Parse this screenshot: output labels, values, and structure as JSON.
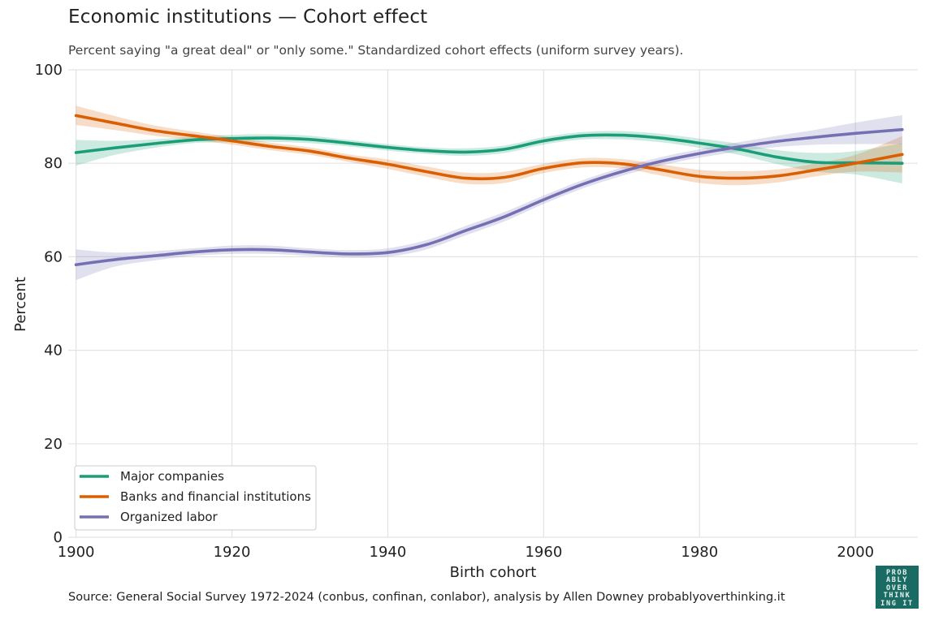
{
  "header": {
    "title": "Economic institutions — Cohort effect",
    "subtitle": "Percent saying \"a great deal\" or \"only some.\" Standardized cohort effects (uniform survey years)."
  },
  "footer": {
    "source": "Source: General Social Survey 1972-2024 (conbus, confinan, conlabor), analysis by Allen Downey probablyoverthinking.it"
  },
  "logo": {
    "lines": [
      "PROB",
      "ABLY",
      "OVER",
      "THINK",
      "ING IT"
    ]
  },
  "chart_data": {
    "type": "line",
    "xlabel": "Birth cohort",
    "ylabel": "Percent",
    "xlim": [
      1899,
      2008
    ],
    "ylim": [
      0,
      100
    ],
    "x_ticks": [
      1900,
      1920,
      1940,
      1960,
      1980,
      2000
    ],
    "y_ticks": [
      0,
      20,
      40,
      60,
      80,
      100
    ],
    "grid": true,
    "legend_position": "bottom-left",
    "x": [
      1900,
      1905,
      1910,
      1915,
      1920,
      1925,
      1930,
      1935,
      1940,
      1945,
      1950,
      1955,
      1960,
      1965,
      1970,
      1975,
      1980,
      1985,
      1990,
      1995,
      2000,
      2006
    ],
    "series": [
      {
        "name": "Major companies",
        "color": "#1b9e77",
        "values": [
          82.3,
          83.3,
          84.2,
          85.0,
          85.3,
          85.4,
          85.1,
          84.3,
          83.4,
          82.7,
          82.4,
          83.0,
          84.8,
          85.9,
          86.0,
          85.4,
          84.3,
          83.0,
          81.3,
          80.2,
          80.1,
          80.0
        ],
        "ci_low": [
          79.5,
          81.8,
          83.3,
          84.3,
          84.5,
          84.6,
          84.3,
          83.6,
          82.7,
          82.0,
          81.6,
          82.2,
          84.0,
          85.1,
          85.1,
          84.5,
          83.3,
          81.8,
          79.8,
          78.2,
          77.6,
          75.7
        ],
        "ci_high": [
          85.0,
          84.8,
          85.1,
          85.7,
          86.1,
          86.2,
          85.9,
          85.0,
          84.1,
          83.4,
          83.2,
          83.8,
          85.6,
          86.7,
          86.9,
          86.3,
          85.3,
          84.2,
          82.8,
          82.2,
          82.6,
          84.3
        ]
      },
      {
        "name": "Banks and financial institutions",
        "color": "#d95f02",
        "values": [
          90.2,
          88.6,
          87.0,
          85.9,
          84.8,
          83.6,
          82.6,
          81.1,
          79.8,
          78.2,
          76.8,
          77.0,
          78.9,
          80.1,
          79.9,
          78.6,
          77.2,
          76.8,
          77.3,
          78.6,
          80.0,
          81.9
        ],
        "ci_low": [
          88.2,
          87.1,
          85.9,
          85.0,
          84.0,
          82.8,
          81.8,
          80.3,
          78.8,
          77.1,
          75.6,
          75.8,
          77.9,
          79.1,
          78.9,
          77.4,
          75.8,
          75.3,
          75.9,
          77.2,
          78.2,
          78.0
        ],
        "ci_high": [
          92.3,
          90.1,
          88.1,
          86.8,
          85.6,
          84.4,
          83.4,
          81.9,
          80.8,
          79.3,
          78.0,
          78.2,
          79.9,
          81.1,
          80.9,
          79.8,
          78.6,
          78.3,
          78.7,
          80.0,
          81.8,
          85.8
        ]
      },
      {
        "name": "Organized labor",
        "color": "#7570b3",
        "values": [
          58.3,
          59.4,
          60.2,
          61.0,
          61.5,
          61.5,
          61.0,
          60.6,
          60.9,
          62.6,
          65.6,
          68.6,
          72.2,
          75.5,
          78.2,
          80.4,
          82.1,
          83.5,
          84.7,
          85.6,
          86.4,
          87.2
        ],
        "ci_low": [
          55.0,
          57.9,
          59.2,
          60.2,
          60.6,
          60.6,
          60.2,
          59.8,
          60.0,
          61.6,
          64.6,
          67.6,
          71.3,
          74.6,
          77.3,
          79.5,
          81.2,
          82.5,
          83.5,
          84.0,
          84.1,
          84.1
        ],
        "ci_high": [
          61.6,
          60.9,
          61.2,
          61.8,
          62.4,
          62.4,
          61.8,
          61.4,
          61.8,
          63.6,
          66.6,
          69.6,
          73.1,
          76.4,
          79.1,
          81.3,
          83.0,
          84.5,
          85.9,
          87.2,
          88.7,
          90.3
        ]
      }
    ]
  }
}
